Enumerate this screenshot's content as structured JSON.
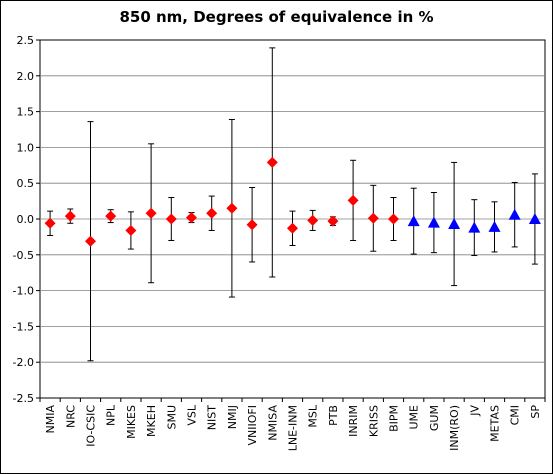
{
  "chart_data": {
    "type": "scatter",
    "title": "850 nm, Degrees of equivalence in %",
    "xlabel": "",
    "ylabel": "",
    "ylim": [
      -2.5,
      2.5
    ],
    "yticks": [
      "2.5",
      "2.0",
      "1.5",
      "1.0",
      "0.5",
      "0.0",
      "-0.5",
      "-1.0",
      "-1.5",
      "-2.0",
      "-2.5"
    ],
    "grid": "horizontal",
    "legend": "none",
    "categories": [
      "NMIA",
      "NRC",
      "IO-CSIC",
      "NPL",
      "MIKES",
      "MKEH",
      "SMU",
      "VSL",
      "NIST",
      "NMIJ",
      "VNIIOFI",
      "NMISA",
      "LNE-INM",
      "MSL",
      "PTB",
      "INRIM",
      "KRISS",
      "BIPM",
      "UME",
      "GUM",
      "INM(RO)",
      "JV",
      "METAS",
      "CMI",
      "SP"
    ],
    "values": [
      -0.06,
      0.04,
      -0.31,
      0.04,
      -0.16,
      0.08,
      0.0,
      0.02,
      0.08,
      0.15,
      -0.08,
      0.79,
      -0.13,
      -0.02,
      -0.03,
      0.26,
      0.01,
      0.0,
      -0.03,
      -0.05,
      -0.07,
      -0.12,
      -0.11,
      0.06,
      0.0
    ],
    "uncertainty": [
      0.17,
      0.1,
      1.67,
      0.09,
      0.26,
      0.97,
      0.3,
      0.07,
      0.24,
      1.24,
      0.52,
      1.6,
      0.24,
      0.14,
      0.06,
      0.56,
      0.46,
      0.3,
      0.46,
      0.42,
      0.86,
      0.39,
      0.35,
      0.45,
      0.63
    ],
    "markers": [
      "diamond",
      "diamond",
      "diamond",
      "diamond",
      "diamond",
      "diamond",
      "diamond",
      "diamond",
      "diamond",
      "diamond",
      "diamond",
      "diamond",
      "diamond",
      "diamond",
      "diamond",
      "diamond",
      "diamond",
      "diamond",
      "triangle",
      "triangle",
      "triangle",
      "triangle",
      "triangle",
      "triangle",
      "triangle"
    ],
    "colors": {
      "diamond": "#ff0000",
      "triangle": "#0000ff",
      "plot_background": "#ffffff",
      "grid": "#808080",
      "axis": "#000000"
    }
  }
}
